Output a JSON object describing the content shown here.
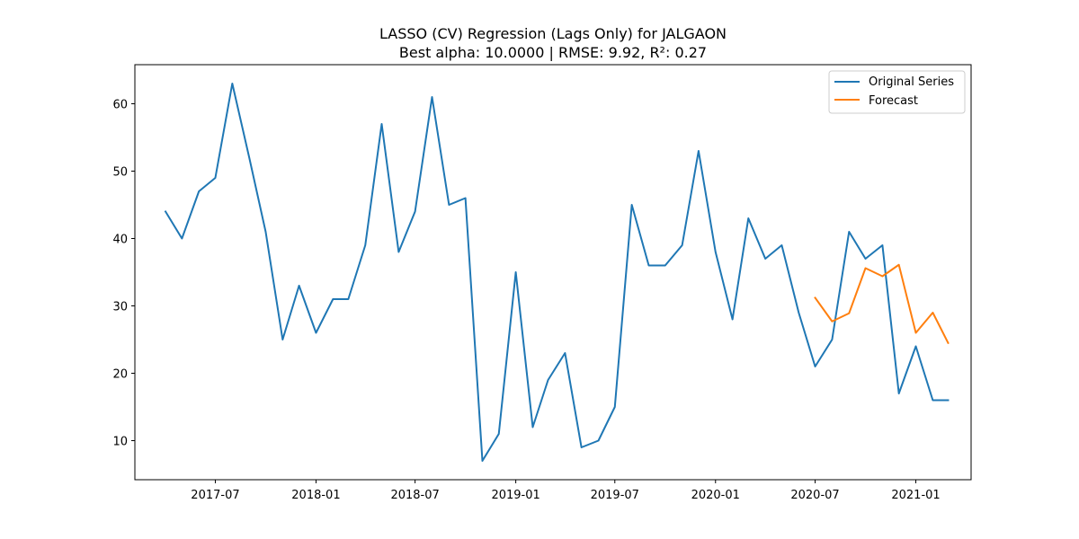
{
  "chart_data": {
    "type": "line",
    "title": "LASSO (CV) Regression (Lags Only) for JALGAON",
    "subtitle": "Best alpha: 10.0000 | RMSE: 9.92, R²: 0.27",
    "xlabel": "",
    "ylabel": "",
    "x_axis": {
      "type": "date",
      "range": [
        "2017-02-04",
        "2021-04-12"
      ],
      "ticks": [
        "2017-07",
        "2018-01",
        "2018-07",
        "2019-01",
        "2019-07",
        "2020-01",
        "2020-07",
        "2021-01"
      ]
    },
    "y_axis": {
      "range": [
        4.2,
        65.8
      ],
      "ticks": [
        10,
        20,
        30,
        40,
        50,
        60
      ]
    },
    "grid": false,
    "legend": {
      "position": "top-right"
    },
    "series": [
      {
        "name": "Original Series",
        "color": "#1f77b4",
        "points": [
          [
            "2017-04",
            44
          ],
          [
            "2017-05",
            40
          ],
          [
            "2017-06",
            47
          ],
          [
            "2017-07",
            49
          ],
          [
            "2017-08",
            63
          ],
          [
            "2017-09",
            52
          ],
          [
            "2017-10",
            41
          ],
          [
            "2017-11",
            25
          ],
          [
            "2017-12",
            33
          ],
          [
            "2018-01",
            26
          ],
          [
            "2018-02",
            31
          ],
          [
            "2018-03",
            31
          ],
          [
            "2018-04",
            39
          ],
          [
            "2018-05",
            57
          ],
          [
            "2018-06",
            38
          ],
          [
            "2018-07",
            44
          ],
          [
            "2018-08",
            61
          ],
          [
            "2018-09",
            45
          ],
          [
            "2018-10",
            46
          ],
          [
            "2018-11",
            7
          ],
          [
            "2018-12",
            11
          ],
          [
            "2019-01",
            35
          ],
          [
            "2019-02",
            12
          ],
          [
            "2019-03",
            19
          ],
          [
            "2019-04",
            23
          ],
          [
            "2019-05",
            9
          ],
          [
            "2019-06",
            10
          ],
          [
            "2019-07",
            15
          ],
          [
            "2019-08",
            45
          ],
          [
            "2019-09",
            36
          ],
          [
            "2019-10",
            36
          ],
          [
            "2019-11",
            39
          ],
          [
            "2019-12",
            53
          ],
          [
            "2020-01",
            38
          ],
          [
            "2020-02",
            28
          ],
          [
            "2020-03",
            43
          ],
          [
            "2020-04",
            37
          ],
          [
            "2020-05",
            39
          ],
          [
            "2020-06",
            29
          ],
          [
            "2020-07",
            21
          ],
          [
            "2020-08",
            25
          ],
          [
            "2020-09",
            41
          ],
          [
            "2020-10",
            37
          ],
          [
            "2020-11",
            39
          ],
          [
            "2020-12",
            17
          ],
          [
            "2021-01",
            24
          ],
          [
            "2021-02",
            16
          ],
          [
            "2021-03",
            16
          ]
        ]
      },
      {
        "name": "Forecast",
        "color": "#ff7f0e",
        "points": [
          [
            "2020-07",
            31.2
          ],
          [
            "2020-08",
            27.7
          ],
          [
            "2020-09",
            28.9
          ],
          [
            "2020-10",
            35.6
          ],
          [
            "2020-11",
            34.4
          ],
          [
            "2020-12",
            36.1
          ],
          [
            "2021-01",
            26.0
          ],
          [
            "2021-02",
            29.0
          ],
          [
            "2021-03",
            24.5
          ]
        ]
      }
    ]
  }
}
